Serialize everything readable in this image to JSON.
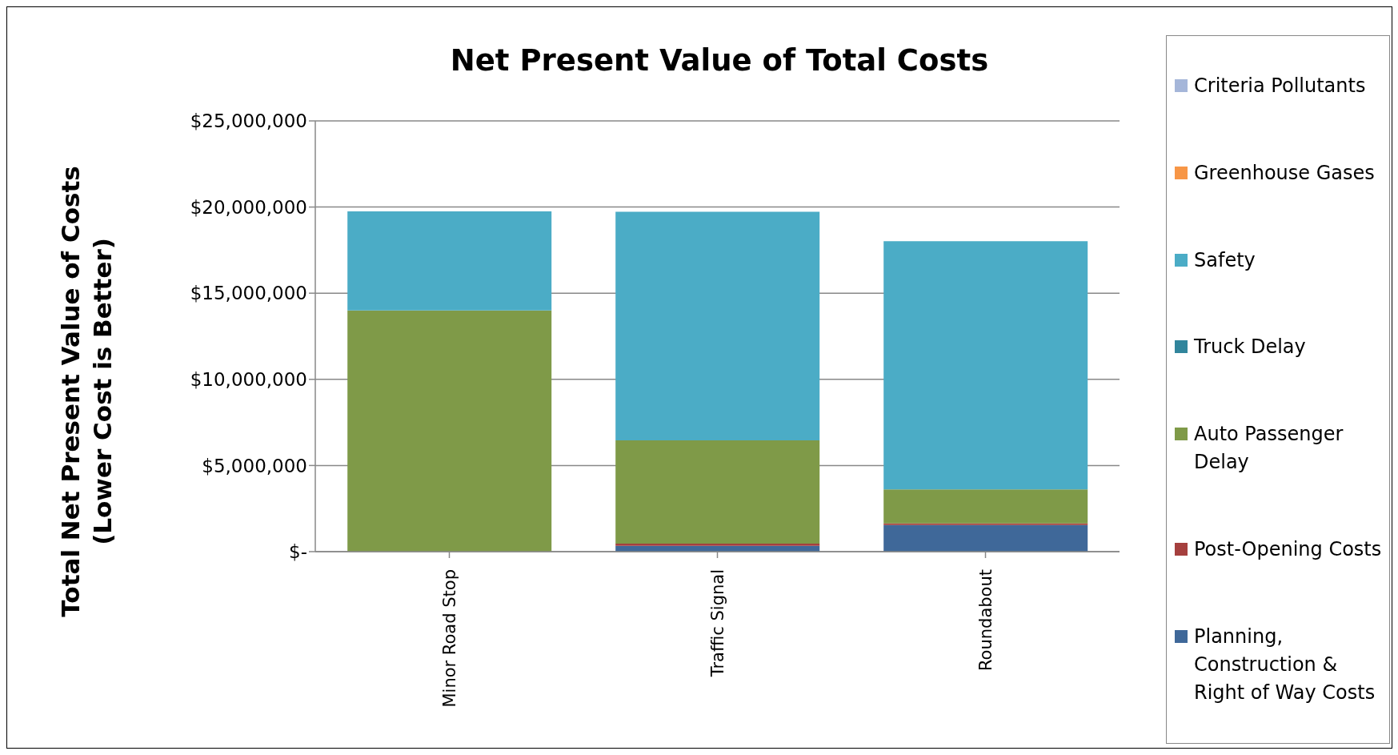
{
  "chart_data": {
    "type": "bar",
    "title": "Net Present Value of Total Costs",
    "ylabel": "Total Net Present Value of Costs\n(Lower Cost is Better)",
    "categories": [
      "Minor Road Stop",
      "Traffic Signal",
      "Roundabout"
    ],
    "stacked": true,
    "series": [
      {
        "name": "Planning, Construction & Right of Way Costs",
        "color": "#3f6899",
        "values": [
          0,
          340000,
          1540000
        ]
      },
      {
        "name": "Post-Opening Costs",
        "color": "#a5403e",
        "values": [
          0,
          120000,
          100000
        ]
      },
      {
        "name": "Auto Passenger Delay",
        "color": "#7f9a48",
        "values": [
          14000000,
          6000000,
          1970000
        ]
      },
      {
        "name": "Truck Delay",
        "color": "#31859c",
        "values": [
          0,
          0,
          0
        ]
      },
      {
        "name": "Safety",
        "color": "#4bacc6",
        "values": [
          5750000,
          13270000,
          14410000
        ]
      },
      {
        "name": "Greenhouse Gases",
        "color": "#f79646",
        "values": [
          0,
          0,
          0
        ]
      },
      {
        "name": "Criteria Pollutants",
        "color": "#a5b6d9",
        "values": [
          0,
          0,
          0
        ]
      }
    ],
    "ylim": [
      0,
      25000000
    ],
    "yticks": [
      {
        "value": 0,
        "label": "$-"
      },
      {
        "value": 5000000,
        "label": "$5,000,000"
      },
      {
        "value": 10000000,
        "label": "$10,000,000"
      },
      {
        "value": 15000000,
        "label": "$15,000,000"
      },
      {
        "value": 20000000,
        "label": "$20,000,000"
      },
      {
        "value": 25000000,
        "label": "$25,000,000"
      }
    ],
    "grid": "y",
    "legend": "right"
  }
}
